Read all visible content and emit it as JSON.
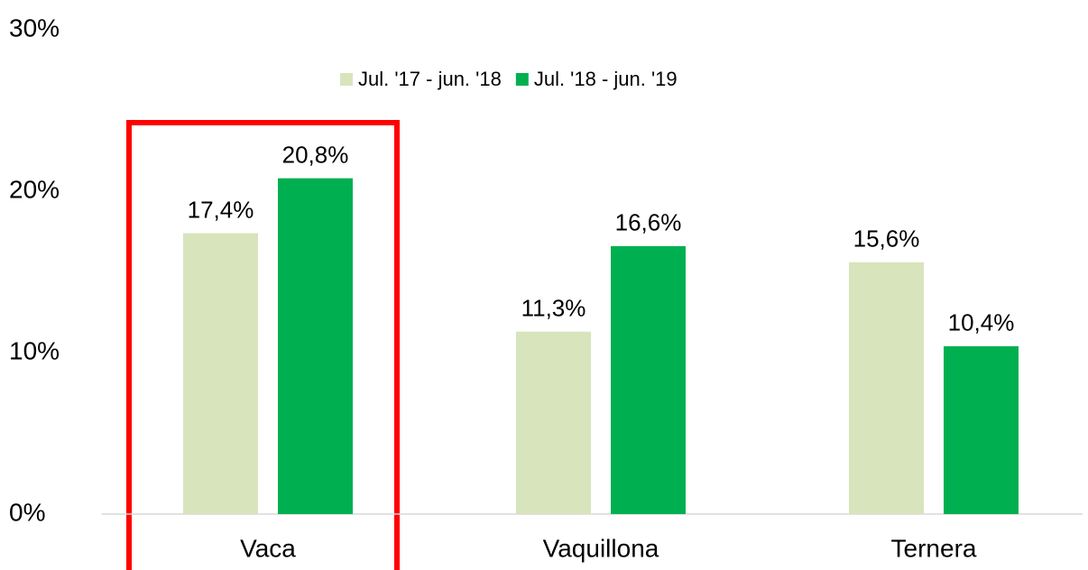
{
  "chart_data": {
    "type": "bar",
    "categories": [
      "Vaca",
      "Vaquillona",
      "Ternera"
    ],
    "series": [
      {
        "name": "Jul. '17 - jun. '18",
        "color": "#d8e4bc",
        "values": [
          17.4,
          11.3,
          15.6
        ],
        "value_labels": [
          "17,4%",
          "11,3%",
          "15,6%"
        ]
      },
      {
        "name": "Jul. '18 - jun. '19",
        "color": "#00b050",
        "values": [
          20.8,
          16.6,
          10.4
        ],
        "value_labels": [
          "20,8%",
          "16,6%",
          "10,4%"
        ]
      }
    ],
    "ylim": [
      0,
      30
    ],
    "yticks": [
      {
        "value": 0,
        "label": "0%"
      },
      {
        "value": 10,
        "label": "10%"
      },
      {
        "value": 20,
        "label": "20%"
      },
      {
        "value": 30,
        "label": "30%"
      }
    ],
    "legend": "top"
  }
}
